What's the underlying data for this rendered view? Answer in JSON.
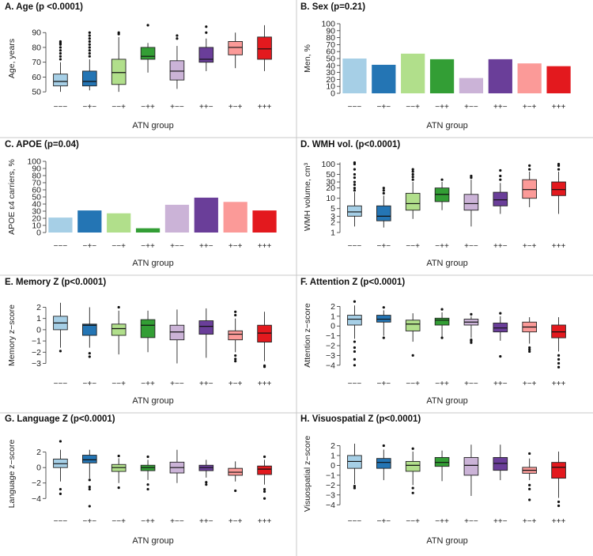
{
  "colors": [
    "#a6cfe6",
    "#2475b4",
    "#b1df8b",
    "#339e35",
    "#cbb3d7",
    "#6a3e99",
    "#fb9a98",
    "#e3191e"
  ],
  "chart_data": [
    {
      "type": "box",
      "title": "A. Age (p <0.0001)",
      "ylabel": "Age, years",
      "xlabel": "ATN group",
      "categories": [
        "−−−",
        "−+−",
        "−−+",
        "−++",
        "+−−",
        "++−",
        "+−+",
        "+++"
      ],
      "yticks": [
        50,
        60,
        70,
        80,
        90
      ],
      "ylim": [
        49,
        96
      ],
      "boxes": [
        {
          "whislo": 50,
          "q1": 54,
          "med": 57,
          "q3": 62,
          "whishi": 70,
          "fliers": [
            72,
            74,
            76,
            78,
            80,
            82,
            83,
            84
          ]
        },
        {
          "whislo": 51,
          "q1": 54,
          "med": 57,
          "q3": 64,
          "whishi": 72,
          "fliers": [
            74,
            76,
            78,
            80,
            82,
            84,
            86,
            88,
            90
          ]
        },
        {
          "whislo": 50,
          "q1": 55,
          "med": 63,
          "q3": 72,
          "whishi": 87,
          "fliers": [
            89,
            90
          ]
        },
        {
          "whislo": 63,
          "q1": 72,
          "med": 74,
          "q3": 80,
          "whishi": 83,
          "fliers": [
            95
          ]
        },
        {
          "whislo": 52,
          "q1": 58,
          "med": 64,
          "q3": 71,
          "whishi": 81,
          "fliers": [
            86,
            88
          ]
        },
        {
          "whislo": 64,
          "q1": 70,
          "med": 72,
          "q3": 80,
          "whishi": 86,
          "fliers": [
            90,
            94
          ]
        },
        {
          "whislo": 66,
          "q1": 75,
          "med": 80,
          "q3": 84,
          "whishi": 90,
          "fliers": []
        },
        {
          "whislo": 64,
          "q1": 72,
          "med": 79,
          "q3": 87,
          "whishi": 95,
          "fliers": []
        }
      ]
    },
    {
      "type": "bar",
      "title": "B. Sex (p=0.21)",
      "ylabel": "Men, %",
      "xlabel": "ATN group",
      "categories": [
        "−−−",
        "−+−",
        "−−+",
        "−++",
        "+−−",
        "++−",
        "+−+",
        "+++"
      ],
      "yticks": [
        0,
        10,
        20,
        30,
        40,
        50,
        60,
        70,
        80,
        90,
        100
      ],
      "ylim": [
        0,
        100
      ],
      "values": [
        50,
        41,
        57,
        49,
        22,
        49,
        43,
        39
      ]
    },
    {
      "type": "bar",
      "title": "C. APOE (p=0.04)",
      "ylabel": "APOE ε4 carriers, %",
      "xlabel": "ATN group",
      "categories": [
        "−−−",
        "−+−",
        "−−+",
        "−++",
        "+−−",
        "++−",
        "+−+",
        "+++"
      ],
      "yticks": [
        0,
        10,
        20,
        30,
        40,
        50,
        60,
        70,
        80,
        90,
        100
      ],
      "ylim": [
        0,
        100
      ],
      "values": [
        21,
        31,
        27,
        6,
        39,
        49,
        43,
        31
      ]
    },
    {
      "type": "box",
      "scale": "log",
      "title": "D. WMH vol. (p<0.0001)",
      "ylabel": "WMH volume, cm³",
      "xlabel": "ATN group",
      "categories": [
        "−−−",
        "−+−",
        "−−+",
        "−++",
        "+−−",
        "++−",
        "+−+",
        "+++"
      ],
      "yticks": [
        1,
        2,
        3,
        5,
        10,
        20,
        30,
        50,
        100
      ],
      "ylim": [
        1,
        120
      ],
      "boxes": [
        {
          "whislo": 1.5,
          "q1": 3,
          "med": 4,
          "q3": 6,
          "whishi": 15,
          "fliers": [
            17,
            20,
            25,
            30,
            40,
            50,
            70,
            100,
            110
          ]
        },
        {
          "whislo": 1.4,
          "q1": 2.2,
          "med": 3,
          "q3": 6,
          "whishi": 12,
          "fliers": [
            14,
            17,
            20
          ]
        },
        {
          "whislo": 2.5,
          "q1": 4.5,
          "med": 7,
          "q3": 14,
          "whishi": 30,
          "fliers": [
            35,
            42,
            50,
            60,
            70
          ]
        },
        {
          "whislo": 4.5,
          "q1": 8,
          "med": 13,
          "q3": 20,
          "whishi": 30,
          "fliers": [
            35
          ]
        },
        {
          "whislo": 1.5,
          "q1": 4.5,
          "med": 7,
          "q3": 13,
          "whishi": 35,
          "fliers": [
            40,
            45
          ]
        },
        {
          "whislo": 3.5,
          "q1": 6,
          "med": 9,
          "q3": 15,
          "whishi": 28,
          "fliers": [
            35,
            45,
            65
          ]
        },
        {
          "whislo": 5.5,
          "q1": 10,
          "med": 18,
          "q3": 35,
          "whishi": 60,
          "fliers": [
            70,
            90
          ]
        },
        {
          "whislo": 3.5,
          "q1": 12,
          "med": 18,
          "q3": 30,
          "whishi": 60,
          "fliers": [
            70,
            90,
            100
          ]
        }
      ]
    },
    {
      "type": "box",
      "title": "E. Memory Z (p<0.0001)",
      "ylabel": "Memory z−score",
      "xlabel": "ATN group",
      "categories": [
        "−−−",
        "−+−",
        "−−+",
        "−++",
        "+−−",
        "++−",
        "+−+",
        "+++"
      ],
      "yticks": [
        -3,
        -2,
        -1,
        0,
        1,
        2
      ],
      "ylim": [
        -3.6,
        2.6
      ],
      "boxes": [
        {
          "whislo": -1.6,
          "q1": 0,
          "med": 0.6,
          "q3": 1.2,
          "whishi": 2.4,
          "fliers": [
            -1.9
          ]
        },
        {
          "whislo": -1.6,
          "q1": -0.5,
          "med": 0.4,
          "q3": 0.5,
          "whishi": 2.0,
          "fliers": [
            -2.1,
            -2.4
          ]
        },
        {
          "whislo": -2.2,
          "q1": -0.5,
          "med": 0.1,
          "q3": 0.5,
          "whishi": 1.7,
          "fliers": [
            2.0
          ]
        },
        {
          "whislo": -2.0,
          "q1": -0.7,
          "med": 0.4,
          "q3": 0.9,
          "whishi": 1.7,
          "fliers": []
        },
        {
          "whislo": -3.0,
          "q1": -0.9,
          "med": -0.2,
          "q3": 0.4,
          "whishi": 1.8,
          "fliers": []
        },
        {
          "whislo": -2.5,
          "q1": -0.4,
          "med": 0.3,
          "q3": 0.8,
          "whishi": 1.9,
          "fliers": []
        },
        {
          "whislo": -2.0,
          "q1": -0.9,
          "med": -0.4,
          "q3": -0.1,
          "whishi": 1.0,
          "fliers": [
            -2.3,
            -2.6,
            -2.8,
            1.3,
            1.6
          ]
        },
        {
          "whislo": -2.8,
          "q1": -1.1,
          "med": -0.3,
          "q3": 0.4,
          "whishi": 1.6,
          "fliers": [
            -3.2,
            -3.3
          ]
        }
      ]
    },
    {
      "type": "box",
      "title": "F. Attention Z (p<0.0001)",
      "ylabel": "Attention z−score",
      "xlabel": "ATN group",
      "categories": [
        "−−−",
        "−+−",
        "−−+",
        "−++",
        "+−−",
        "++−",
        "+−+",
        "+++"
      ],
      "yticks": [
        -4,
        -3,
        -2,
        -1,
        0,
        1,
        2
      ],
      "ylim": [
        -4.5,
        2.6
      ],
      "boxes": [
        {
          "whislo": -1.3,
          "q1": 0.1,
          "med": 0.7,
          "q3": 1.1,
          "whishi": 2.1,
          "fliers": [
            -1.6,
            -2.2,
            -2.6,
            -3.4,
            -4.0,
            2.5
          ]
        },
        {
          "whislo": -1.0,
          "q1": 0.4,
          "med": 0.7,
          "q3": 1.1,
          "whishi": 1.6,
          "fliers": [
            -1.2,
            1.9
          ]
        },
        {
          "whislo": -1.6,
          "q1": -0.5,
          "med": 0.2,
          "q3": 0.6,
          "whishi": 1.3,
          "fliers": [
            -3.0
          ]
        },
        {
          "whislo": -1.1,
          "q1": 0.1,
          "med": 0.6,
          "q3": 0.8,
          "whishi": 1.4,
          "fliers": [
            -1.2,
            1.7
          ]
        },
        {
          "whislo": -1.2,
          "q1": 0.1,
          "med": 0.4,
          "q3": 0.7,
          "whishi": 1.0,
          "fliers": [
            -1.4,
            -1.5,
            -1.7,
            1.2
          ]
        },
        {
          "whislo": -1.5,
          "q1": -0.6,
          "med": -0.2,
          "q3": 0.3,
          "whishi": 1.0,
          "fliers": [
            -3.1,
            1.3
          ]
        },
        {
          "whislo": -1.8,
          "q1": -0.6,
          "med": -0.1,
          "q3": 0.4,
          "whishi": 0.9,
          "fliers": [
            -2.2,
            -2.4,
            -2.6
          ]
        },
        {
          "whislo": -2.6,
          "q1": -1.2,
          "med": -0.6,
          "q3": 0.1,
          "whishi": 0.9,
          "fliers": [
            -3.0,
            -3.4,
            -3.8,
            -4.2
          ]
        }
      ]
    },
    {
      "type": "box",
      "title": "G. Language Z (p<0.0001)",
      "ylabel": "Language z−score",
      "xlabel": "ATN group",
      "categories": [
        "−−−",
        "−+−",
        "−−+",
        "−++",
        "+−−",
        "++−",
        "+−+",
        "+++"
      ],
      "yticks": [
        -4,
        -2,
        0,
        2
      ],
      "ylim": [
        -5.2,
        3.6
      ],
      "boxes": [
        {
          "whislo": -1.8,
          "q1": 0,
          "med": 0.5,
          "q3": 1.1,
          "whishi": 2.3,
          "fliers": [
            -2.8,
            -3.4,
            3.4
          ]
        },
        {
          "whislo": -1.4,
          "q1": 0.6,
          "med": 1.0,
          "q3": 1.6,
          "whishi": 2.3,
          "fliers": [
            -1.6,
            -2.5,
            -2.8,
            -5.0
          ]
        },
        {
          "whislo": -2.0,
          "q1": -0.5,
          "med": 0,
          "q3": 0.4,
          "whishi": 1.2,
          "fliers": [
            -2.6,
            1.5
          ]
        },
        {
          "whislo": -1.6,
          "q1": -0.4,
          "med": 0,
          "q3": 0.3,
          "whishi": 1.0,
          "fliers": [
            -2.2,
            -2.8,
            1.4
          ]
        },
        {
          "whislo": -2.0,
          "q1": -0.7,
          "med": 0,
          "q3": 0.7,
          "whishi": 2.3,
          "fliers": []
        },
        {
          "whislo": -1.3,
          "q1": -0.4,
          "med": 0,
          "q3": 0.3,
          "whishi": 1.0,
          "fliers": [
            -1.9,
            -2.2
          ]
        },
        {
          "whislo": -1.8,
          "q1": -1.0,
          "med": -0.6,
          "q3": -0.1,
          "whishi": 0.8,
          "fliers": [
            -3.0
          ]
        },
        {
          "whislo": -2.2,
          "q1": -0.9,
          "med": -0.2,
          "q3": 0.2,
          "whishi": 1.0,
          "fliers": [
            -2.8,
            -3.1,
            -4.0,
            1.4
          ]
        }
      ]
    },
    {
      "type": "box",
      "title": "H. Visuospatial Z (p<0.0001)",
      "ylabel": "Visuospatial z−score",
      "xlabel": "ATN group",
      "categories": [
        "−−−",
        "−+−",
        "−−+",
        "−++",
        "+−−",
        "++−",
        "+−+",
        "+++"
      ],
      "yticks": [
        -4,
        -3,
        -2,
        -1,
        0,
        1,
        2
      ],
      "ylim": [
        -4.3,
        2.6
      ],
      "boxes": [
        {
          "whislo": -1.9,
          "q1": -0.3,
          "med": 0.4,
          "q3": 1.0,
          "whishi": 2.2,
          "fliers": [
            -2.1,
            -2.3
          ]
        },
        {
          "whislo": -1.5,
          "q1": -0.3,
          "med": 0.3,
          "q3": 0.7,
          "whishi": 1.6,
          "fliers": [
            2.0
          ]
        },
        {
          "whislo": -2.0,
          "q1": -0.6,
          "med": 0,
          "q3": 0.4,
          "whishi": 1.4,
          "fliers": [
            -2.3,
            -2.8,
            1.7
          ]
        },
        {
          "whislo": -1.6,
          "q1": -0.1,
          "med": 0.3,
          "q3": 0.8,
          "whishi": 1.5,
          "fliers": []
        },
        {
          "whislo": -3.1,
          "q1": -1.0,
          "med": 0,
          "q3": 0.8,
          "whishi": 2.1,
          "fliers": []
        },
        {
          "whislo": -1.5,
          "q1": -0.5,
          "med": 0.2,
          "q3": 0.8,
          "whishi": 2.1,
          "fliers": []
        },
        {
          "whislo": -1.5,
          "q1": -0.8,
          "med": -0.5,
          "q3": -0.2,
          "whishi": 0.7,
          "fliers": [
            -2.0,
            -2.4,
            -3.5,
            1.2
          ]
        },
        {
          "whislo": -3.3,
          "q1": -1.3,
          "med": -0.2,
          "q3": 0.3,
          "whishi": 1.4,
          "fliers": [
            -3.7,
            -4.1
          ]
        }
      ]
    }
  ]
}
